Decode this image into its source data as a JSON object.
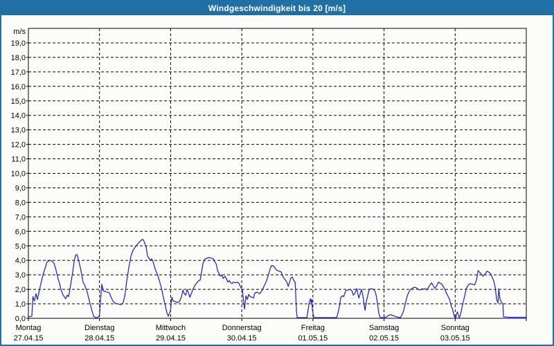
{
  "window": {
    "title": "Windgeschwindigkeit bis 20 [m/s]"
  },
  "colors": {
    "titlebar_bg": "#2170a5",
    "window_border": "#2170a5",
    "background": "#fcfdfa",
    "plot_border": "#000000",
    "grid": "#000000",
    "text": "#000000",
    "title_text": "#ffffff",
    "line": "#2a2abd"
  },
  "chart_data": {
    "type": "line",
    "title": "Windgeschwindigkeit bis 20 [m/s]",
    "y_axis": {
      "unit": "m/s",
      "min": 0,
      "max": 20,
      "tick_step": 1,
      "tick_labels": [
        "0,0",
        "1,0",
        "2,0",
        "3,0",
        "4,0",
        "5,0",
        "6,0",
        "7,0",
        "8,0",
        "9,0",
        "10,0",
        "11,0",
        "12,0",
        "13,0",
        "14,0",
        "15,0",
        "16,0",
        "17,0",
        "18,0",
        "19,0"
      ]
    },
    "x_axis": {
      "categories": [
        {
          "day": "Montag",
          "date": "27.04.15"
        },
        {
          "day": "Dienstag",
          "date": "28.04.15"
        },
        {
          "day": "Mittwoch",
          "date": "29.04.15"
        },
        {
          "day": "Donnerstag",
          "date": "30.04.15"
        },
        {
          "day": "Freitag",
          "date": "01.05.15"
        },
        {
          "day": "Samstag",
          "date": "02.05.15"
        },
        {
          "day": "Sonntag",
          "date": "03.05.15"
        }
      ]
    },
    "grid": {
      "horizontal": "dashed",
      "vertical": "dashed at day boundaries"
    },
    "legend": "none",
    "series": [
      {
        "name": "Windgeschwindigkeit",
        "unit": "m/s",
        "x_unit": "days since 27.04.15 00:00",
        "points": [
          [
            0.005,
            0.1
          ],
          [
            0.049,
            0.15
          ],
          [
            0.063,
            1.5
          ],
          [
            0.083,
            1.2
          ],
          [
            0.107,
            1.7
          ],
          [
            0.127,
            1.3
          ],
          [
            0.166,
            2.2
          ],
          [
            0.205,
            3.0
          ],
          [
            0.244,
            3.6
          ],
          [
            0.263,
            3.9
          ],
          [
            0.302,
            4.0
          ],
          [
            0.331,
            3.95
          ],
          [
            0.36,
            3.8
          ],
          [
            0.39,
            3.3
          ],
          [
            0.419,
            2.7
          ],
          [
            0.438,
            2.4
          ],
          [
            0.458,
            2.0
          ],
          [
            0.487,
            1.6
          ],
          [
            0.526,
            1.35
          ],
          [
            0.545,
            1.6
          ],
          [
            0.565,
            1.5
          ],
          [
            0.584,
            2.0
          ],
          [
            0.604,
            2.6
          ],
          [
            0.623,
            3.2
          ],
          [
            0.643,
            3.9
          ],
          [
            0.662,
            4.35
          ],
          [
            0.682,
            4.4
          ],
          [
            0.701,
            4.1
          ],
          [
            0.73,
            3.5
          ],
          [
            0.75,
            3.0
          ],
          [
            0.769,
            2.5
          ],
          [
            0.799,
            2.2
          ],
          [
            0.828,
            1.8
          ],
          [
            0.847,
            1.4
          ],
          [
            0.867,
            1.0
          ],
          [
            0.896,
            0.5
          ],
          [
            0.916,
            0.15
          ],
          [
            0.945,
            0.05
          ],
          [
            0.974,
            0.05
          ],
          [
            1.0,
            0.2
          ],
          [
            1.013,
            1.2
          ],
          [
            1.032,
            2.35
          ],
          [
            1.052,
            1.9
          ],
          [
            1.081,
            1.85
          ],
          [
            1.11,
            1.8
          ],
          [
            1.139,
            1.75
          ],
          [
            1.159,
            1.5
          ],
          [
            1.188,
            1.2
          ],
          [
            1.217,
            1.05
          ],
          [
            1.256,
            1.0
          ],
          [
            1.295,
            0.95
          ],
          [
            1.325,
            1.0
          ],
          [
            1.354,
            1.5
          ],
          [
            1.383,
            2.6
          ],
          [
            1.412,
            3.5
          ],
          [
            1.442,
            4.3
          ],
          [
            1.471,
            4.7
          ],
          [
            1.5,
            4.9
          ],
          [
            1.529,
            5.1
          ],
          [
            1.558,
            5.25
          ],
          [
            1.588,
            5.4
          ],
          [
            1.607,
            5.45
          ],
          [
            1.627,
            5.3
          ],
          [
            1.656,
            4.9
          ],
          [
            1.675,
            4.3
          ],
          [
            1.695,
            4.15
          ],
          [
            1.714,
            4.0
          ],
          [
            1.734,
            4.1
          ],
          [
            1.753,
            3.9
          ],
          [
            1.782,
            3.4
          ],
          [
            1.812,
            3.05
          ],
          [
            1.841,
            2.6
          ],
          [
            1.87,
            2.1
          ],
          [
            1.899,
            1.4
          ],
          [
            1.929,
            0.8
          ],
          [
            1.948,
            0.35
          ],
          [
            1.968,
            0.15
          ],
          [
            1.997,
            0.5
          ],
          [
            2.016,
            1.45
          ],
          [
            2.036,
            1.2
          ],
          [
            2.065,
            1.15
          ],
          [
            2.094,
            1.1
          ],
          [
            2.123,
            1.15
          ],
          [
            2.153,
            1.5
          ],
          [
            2.172,
            1.95
          ],
          [
            2.192,
            1.7
          ],
          [
            2.211,
            1.6
          ],
          [
            2.231,
            2.0
          ],
          [
            2.25,
            1.75
          ],
          [
            2.27,
            1.45
          ],
          [
            2.289,
            1.7
          ],
          [
            2.309,
            1.95
          ],
          [
            2.338,
            2.25
          ],
          [
            2.367,
            2.45
          ],
          [
            2.396,
            2.6
          ],
          [
            2.416,
            2.65
          ],
          [
            2.435,
            3.2
          ],
          [
            2.455,
            3.8
          ],
          [
            2.484,
            4.1
          ],
          [
            2.513,
            4.15
          ],
          [
            2.542,
            4.2
          ],
          [
            2.571,
            4.15
          ],
          [
            2.601,
            4.1
          ],
          [
            2.62,
            3.9
          ],
          [
            2.64,
            3.75
          ],
          [
            2.659,
            3.3
          ],
          [
            2.679,
            3.1
          ],
          [
            2.698,
            2.9
          ],
          [
            2.718,
            3.0
          ],
          [
            2.737,
            2.75
          ],
          [
            2.766,
            2.9
          ],
          [
            2.786,
            2.7
          ],
          [
            2.805,
            2.5
          ],
          [
            2.825,
            2.6
          ],
          [
            2.844,
            2.45
          ],
          [
            2.864,
            2.4
          ],
          [
            2.883,
            2.5
          ],
          [
            2.912,
            2.45
          ],
          [
            2.941,
            2.5
          ],
          [
            2.961,
            2.4
          ],
          [
            2.98,
            2.2
          ],
          [
            3.01,
            1.9
          ],
          [
            3.029,
            1.0
          ],
          [
            3.039,
            0.65
          ],
          [
            3.058,
            1.55
          ],
          [
            3.078,
            1.3
          ],
          [
            3.097,
            1.65
          ],
          [
            3.117,
            1.5
          ],
          [
            3.146,
            1.45
          ],
          [
            3.165,
            1.4
          ],
          [
            3.185,
            1.75
          ],
          [
            3.214,
            1.8
          ],
          [
            3.233,
            1.75
          ],
          [
            3.253,
            1.7
          ],
          [
            3.282,
            1.9
          ],
          [
            3.311,
            2.2
          ],
          [
            3.34,
            2.5
          ],
          [
            3.37,
            2.9
          ],
          [
            3.399,
            3.4
          ],
          [
            3.419,
            3.65
          ],
          [
            3.448,
            3.6
          ],
          [
            3.477,
            3.4
          ],
          [
            3.497,
            3.3
          ],
          [
            3.526,
            3.25
          ],
          [
            3.555,
            3.2
          ],
          [
            3.575,
            2.9
          ],
          [
            3.604,
            2.7
          ],
          [
            3.633,
            2.5
          ],
          [
            3.653,
            2.2
          ],
          [
            3.672,
            2.5
          ],
          [
            3.692,
            2.8
          ],
          [
            3.711,
            2.85
          ],
          [
            3.731,
            2.6
          ],
          [
            3.75,
            2.5
          ],
          [
            3.76,
            1.5
          ],
          [
            3.77,
            0.4
          ],
          [
            3.779,
            0.05
          ],
          [
            3.916,
            0.05
          ],
          [
            3.945,
            1.0
          ],
          [
            3.964,
            1.35
          ],
          [
            3.974,
            1.1
          ],
          [
            3.984,
            1.3
          ],
          [
            3.993,
            0.6
          ],
          [
            4.013,
            0.05
          ],
          [
            4.334,
            0.05
          ],
          [
            4.364,
            0.6
          ],
          [
            4.393,
            1.45
          ],
          [
            4.412,
            1.55
          ],
          [
            4.432,
            1.5
          ],
          [
            4.461,
            1.9
          ],
          [
            4.49,
            1.95
          ],
          [
            4.519,
            2.0
          ],
          [
            4.549,
            1.9
          ],
          [
            4.568,
            1.6
          ],
          [
            4.587,
            1.7
          ],
          [
            4.617,
            2.05
          ],
          [
            4.636,
            1.6
          ],
          [
            4.646,
            1.4
          ],
          [
            4.665,
            1.7
          ],
          [
            4.685,
            2.0
          ],
          [
            4.704,
            1.5
          ],
          [
            4.724,
            0.8
          ],
          [
            4.733,
            0.55
          ],
          [
            4.753,
            1.2
          ],
          [
            4.772,
            1.6
          ],
          [
            4.792,
            2.0
          ],
          [
            4.821,
            2.05
          ],
          [
            4.85,
            2.0
          ],
          [
            4.87,
            1.9
          ],
          [
            4.889,
            1.6
          ],
          [
            4.908,
            1.0
          ],
          [
            4.928,
            0.3
          ],
          [
            4.947,
            0.05
          ],
          [
            5.002,
            0.05
          ],
          [
            5.035,
            0.1
          ],
          [
            5.064,
            0.2
          ],
          [
            5.094,
            0.25
          ],
          [
            5.123,
            0.2
          ],
          [
            5.172,
            0.1
          ],
          [
            5.23,
            0.05
          ],
          [
            5.259,
            0.3
          ],
          [
            5.279,
            0.6
          ],
          [
            5.308,
            1.2
          ],
          [
            5.327,
            1.55
          ],
          [
            5.347,
            1.8
          ],
          [
            5.376,
            2.0
          ],
          [
            5.405,
            2.1
          ],
          [
            5.434,
            2.15
          ],
          [
            5.454,
            2.1
          ],
          [
            5.483,
            2.0
          ],
          [
            5.512,
            1.95
          ],
          [
            5.532,
            2.05
          ],
          [
            5.561,
            2.0
          ],
          [
            5.581,
            2.05
          ],
          [
            5.6,
            1.95
          ],
          [
            5.62,
            2.1
          ],
          [
            5.639,
            2.25
          ],
          [
            5.668,
            2.45
          ],
          [
            5.698,
            2.2
          ],
          [
            5.717,
            2.05
          ],
          [
            5.746,
            2.3
          ],
          [
            5.766,
            2.5
          ],
          [
            5.795,
            2.4
          ],
          [
            5.814,
            2.35
          ],
          [
            5.844,
            2.1
          ],
          [
            5.863,
            1.9
          ],
          [
            5.892,
            1.6
          ],
          [
            5.921,
            1.3
          ],
          [
            5.941,
            0.9
          ],
          [
            5.96,
            0.65
          ],
          [
            5.98,
            0.3
          ],
          [
            5.99,
            0.1
          ],
          [
            6.009,
            0.05
          ],
          [
            6.029,
            0.45
          ],
          [
            6.048,
            0.2
          ],
          [
            6.058,
            0.05
          ],
          [
            6.077,
            0.3
          ],
          [
            6.107,
            1.0
          ],
          [
            6.136,
            1.6
          ],
          [
            6.155,
            2.05
          ],
          [
            6.184,
            2.3
          ],
          [
            6.214,
            2.4
          ],
          [
            6.243,
            2.35
          ],
          [
            6.272,
            2.3
          ],
          [
            6.291,
            2.5
          ],
          [
            6.311,
            2.9
          ],
          [
            6.321,
            3.3
          ],
          [
            6.34,
            3.2
          ],
          [
            6.369,
            3.05
          ],
          [
            6.389,
            2.9
          ],
          [
            6.408,
            3.0
          ],
          [
            6.428,
            3.1
          ],
          [
            6.447,
            3.25
          ],
          [
            6.467,
            3.2
          ],
          [
            6.486,
            3.15
          ],
          [
            6.515,
            2.9
          ],
          [
            6.544,
            2.55
          ],
          [
            6.564,
            2.1
          ],
          [
            6.583,
            1.3
          ],
          [
            6.603,
            1.05
          ],
          [
            6.612,
            2.05
          ],
          [
            6.632,
            1.3
          ],
          [
            6.651,
            1.1
          ],
          [
            6.671,
            1.0
          ],
          [
            6.68,
            0.1
          ],
          [
            6.758,
            0.07
          ],
          [
            7.0,
            0.07
          ]
        ]
      }
    ]
  }
}
